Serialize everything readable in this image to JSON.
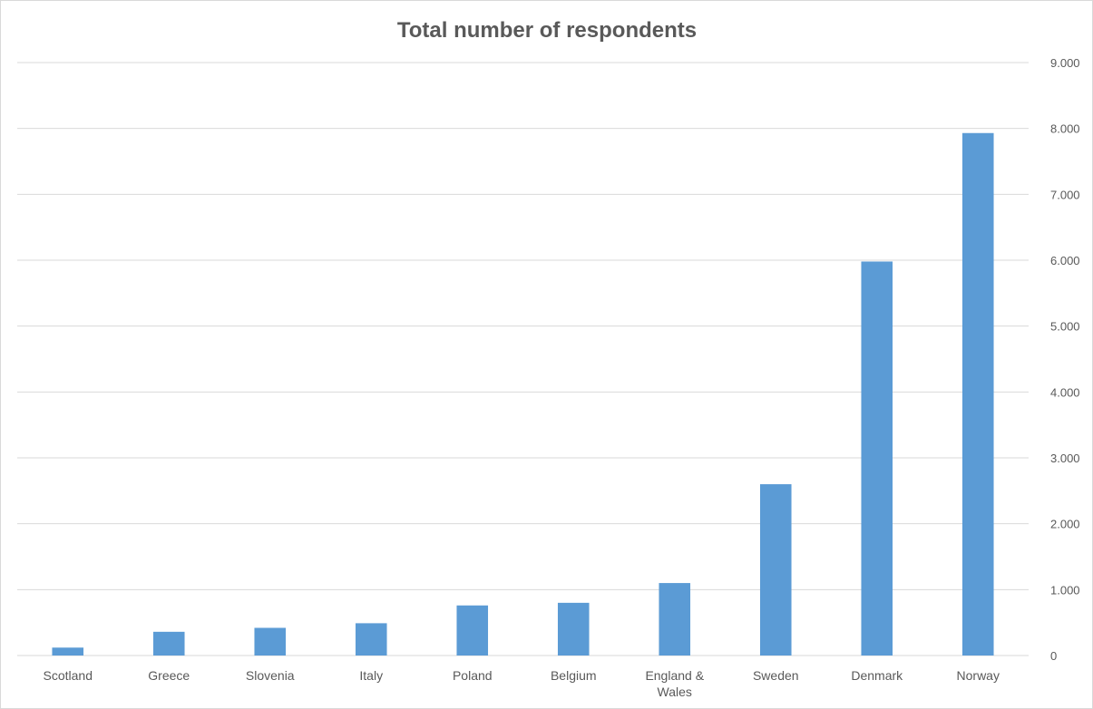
{
  "chart_data": {
    "type": "bar",
    "title": "Total number of respondents",
    "categories": [
      "Scotland",
      "Greece",
      "Slovenia",
      "Italy",
      "Poland",
      "Belgium",
      "England & Wales",
      "Sweden",
      "Denmark",
      "Norway"
    ],
    "category_lines": [
      [
        "Scotland"
      ],
      [
        "Greece"
      ],
      [
        "Slovenia"
      ],
      [
        "Italy"
      ],
      [
        "Poland"
      ],
      [
        "Belgium"
      ],
      [
        "England &",
        "Wales"
      ],
      [
        "Sweden"
      ],
      [
        "Denmark"
      ],
      [
        "Norway"
      ]
    ],
    "values": [
      120,
      360,
      420,
      490,
      760,
      800,
      1100,
      2600,
      5980,
      7930
    ],
    "ylim": [
      0,
      9000
    ],
    "yticks": [
      0,
      1000,
      2000,
      3000,
      4000,
      5000,
      6000,
      7000,
      8000,
      9000
    ],
    "ytick_labels": [
      "0",
      "1.000",
      "2.000",
      "3.000",
      "4.000",
      "5.000",
      "6.000",
      "7.000",
      "8.000",
      "9.000"
    ],
    "y_axis_side": "right",
    "grid": true,
    "legend": false,
    "bar_color": "#5b9bd5",
    "xlabel": "",
    "ylabel": ""
  }
}
